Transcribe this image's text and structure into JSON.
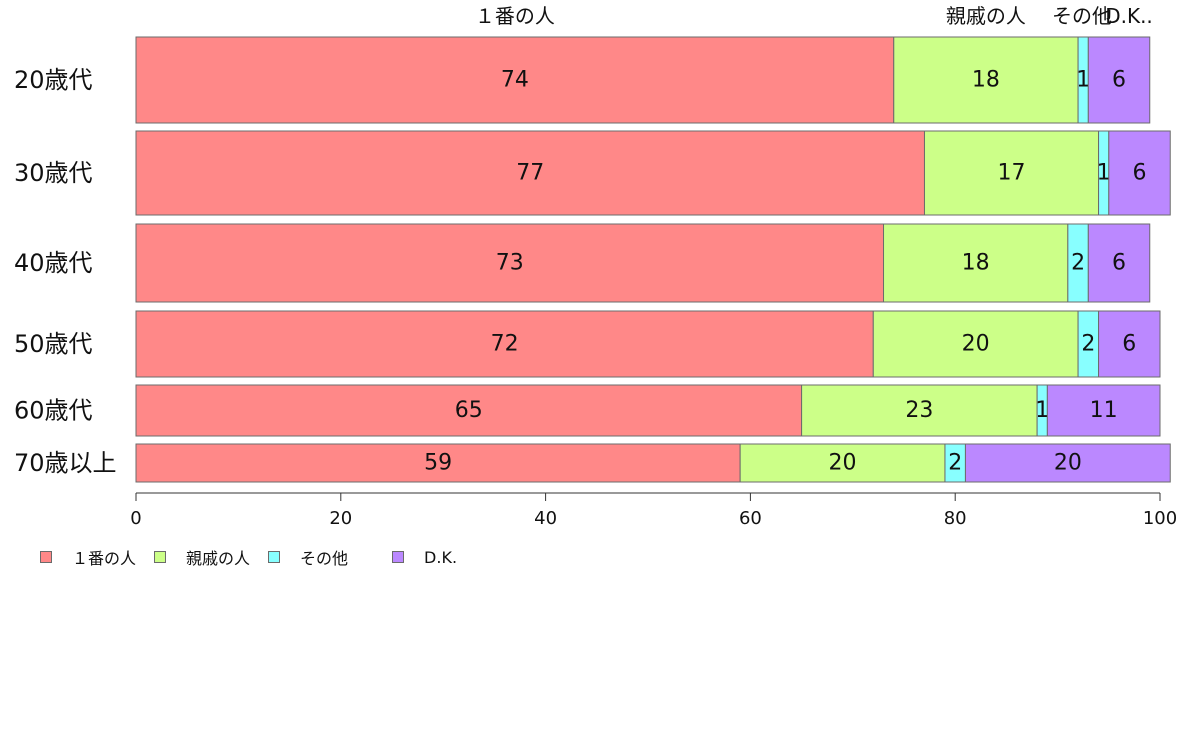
{
  "chart_data": {
    "type": "bar",
    "orientation": "horizontal",
    "stacked": true,
    "categories": [
      "20歳代",
      "30歳代",
      "40歳代",
      "50歳代",
      "60歳代",
      "70歳以上"
    ],
    "series": [
      {
        "name": "１番の人",
        "color": "#ff8888",
        "values": [
          74,
          77,
          73,
          72,
          65,
          59
        ]
      },
      {
        "name": "親戚の人",
        "color": "#ccff88",
        "values": [
          18,
          17,
          18,
          20,
          23,
          20
        ]
      },
      {
        "name": "その他",
        "color": "#88ffff",
        "values": [
          1,
          1,
          2,
          2,
          1,
          2
        ]
      },
      {
        "name": "D.K.",
        "color": "#bb88ff",
        "values": [
          6,
          6,
          6,
          6,
          11,
          20
        ]
      }
    ],
    "top_labels": [
      "１番の人",
      "親戚の人",
      "その他",
      "D.K.."
    ],
    "xlim": [
      0,
      100
    ],
    "xticks": [
      0,
      20,
      40,
      60,
      80,
      100
    ],
    "grid": false,
    "legend_position": "bottom-left"
  }
}
